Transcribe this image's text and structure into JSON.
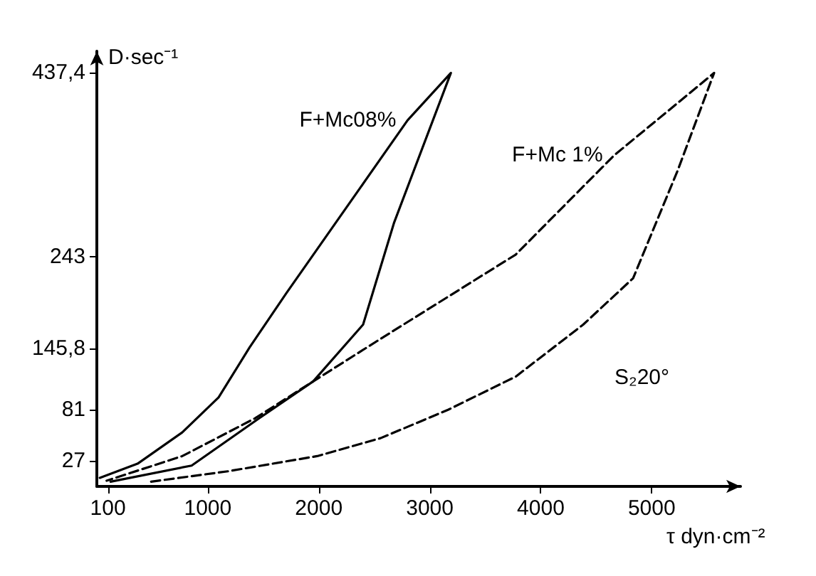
{
  "chart_data": {
    "type": "line",
    "xlabel": "τ dyn·cm⁻²",
    "ylabel": "D·sec⁻¹",
    "xlim": [
      0,
      5800
    ],
    "xticks": [
      100,
      1000,
      2000,
      3000,
      4000,
      5000
    ],
    "ylim": [
      0,
      460
    ],
    "yticks": [
      27,
      81,
      {
        "value": 145.8,
        "label": "145,8"
      },
      243,
      {
        "value": 437.4,
        "label": "437,4"
      }
    ],
    "series": [
      {
        "name": "F+Mc08%",
        "color": "#000000",
        "line_style": "solid",
        "x": [
          124,
          854,
          1462,
          1949,
          2399,
          2679,
          3190,
          2800,
          1706,
          1377,
          1097,
          769,
          367,
          27
        ],
        "values": [
          5,
          22,
          72,
          111,
          171,
          279,
          437,
          387,
          204,
          147,
          94,
          57,
          24,
          9
        ]
      },
      {
        "name": "F+Mc 1%",
        "color": "#000000",
        "line_style": "dashed",
        "x": [
          489,
          1182,
          1985,
          2557,
          3165,
          3774,
          4382,
          4832,
          5234,
          5562,
          4662,
          3774,
          2557,
          1949,
          1426,
          769,
          88
        ],
        "values": [
          5,
          16,
          32,
          51,
          81,
          116,
          171,
          220,
          334,
          437,
          350,
          245,
          156,
          111,
          72,
          32,
          6
        ]
      }
    ],
    "annotations": [
      "S₂20°"
    ],
    "grid": false,
    "marker": "none"
  }
}
